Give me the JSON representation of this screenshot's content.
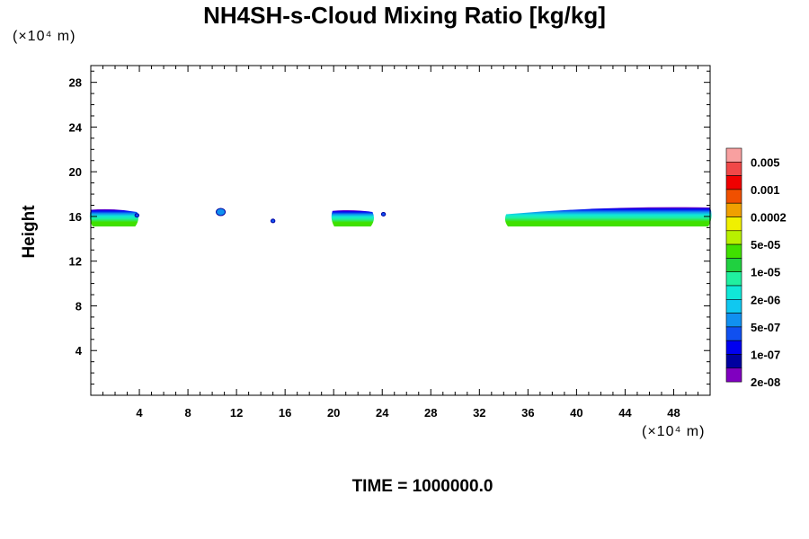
{
  "chart_data": {
    "type": "heatmap",
    "title": "NH4SH-s-Cloud Mixing Ratio [kg/kg]",
    "ylabel": "Height",
    "xlabel": "",
    "x_unit": "(×10⁴ m)",
    "y_unit": "(×10⁴ m)",
    "xlim": [
      0,
      51
    ],
    "ylim": [
      0,
      29.5
    ],
    "x_ticks": [
      4,
      8,
      12,
      16,
      20,
      24,
      28,
      32,
      36,
      40,
      44,
      48
    ],
    "y_ticks": [
      4,
      8,
      12,
      16,
      20,
      24,
      28
    ],
    "time_label": "TIME = 1000000.0",
    "grid": false,
    "legend": "colorbar-right",
    "colorbar": {
      "colors": [
        "#f8a0a0",
        "#f04848",
        "#f00000",
        "#f05000",
        "#f0a000",
        "#f0f000",
        "#b8f000",
        "#40e000",
        "#20d040",
        "#20f0a0",
        "#10e8d8",
        "#10c8f0",
        "#1090f0",
        "#1050f0",
        "#0000f0",
        "#0000a0",
        "#8000c0"
      ],
      "labels": [
        "0.005",
        "0.001",
        "0.0002",
        "5e-05",
        "1e-05",
        "2e-06",
        "5e-07",
        "1e-07",
        "2e-08"
      ]
    },
    "cloud_regions": [
      {
        "x0": 0.0,
        "x1": 3.8,
        "y_base": 15.1,
        "y_top": 16.6,
        "y_top_end": 16.4
      },
      {
        "x0": 19.9,
        "x1": 23.2,
        "y_base": 15.1,
        "y_top": 16.5,
        "y_top_end": 16.4
      },
      {
        "x0": 34.2,
        "x1": 51.0,
        "y_base": 15.1,
        "y_top": 16.2,
        "y_top_end": 16.8
      }
    ],
    "specks": [
      {
        "x": 3.8,
        "y": 16.1
      },
      {
        "x": 10.7,
        "y": 16.4
      },
      {
        "x": 15.0,
        "y": 15.6
      },
      {
        "x": 24.1,
        "y": 16.2
      }
    ]
  }
}
